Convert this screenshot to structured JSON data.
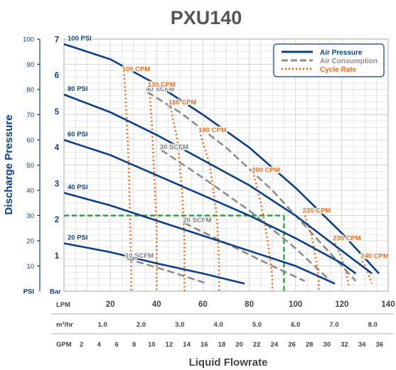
{
  "chart_data": {
    "type": "line",
    "title": "PXU140",
    "xlabel": "Liquid Flowrate",
    "ylabel": "Discharge Pressure",
    "x_unit_label": "LPM",
    "psi_unit_label": "PSI",
    "bar_unit_label": "Bar",
    "xlim": [
      0,
      140
    ],
    "ylim_psi": [
      0,
      100
    ],
    "ylim_bar": [
      0,
      7
    ],
    "x_ticks": [
      20,
      40,
      60,
      80,
      100,
      120,
      140
    ],
    "psi_ticks": [
      10,
      20,
      30,
      40,
      50,
      60,
      70,
      80,
      90,
      100
    ],
    "bar_ticks": [
      1,
      2,
      3,
      4,
      5,
      6,
      7
    ],
    "m3hr_axis": {
      "label": "m³/hr",
      "values": [
        1.0,
        2.0,
        3.0,
        4.0,
        5.0,
        6.0,
        7.0,
        8.0
      ]
    },
    "gpm_axis": {
      "label": "GPM",
      "values": [
        2,
        4,
        6,
        8,
        10,
        12,
        14,
        16,
        18,
        20,
        22,
        24,
        26,
        28,
        30,
        32,
        34,
        36
      ]
    },
    "grid": true,
    "legend_position": "top-right",
    "legend": [
      {
        "label": "Air Pressure",
        "style": "solid",
        "color": "#0b3f86"
      },
      {
        "label": "Air Consumption",
        "style": "dashed",
        "color": "#8c8c8c"
      },
      {
        "label": "Cycle Rate",
        "style": "dotted",
        "color": "#ec6b1e"
      }
    ],
    "colors": {
      "air_pressure": "#0b3f86",
      "air_consumption": "#8c8c8c",
      "cycle_rate": "#ec6b1e",
      "reference": "#2ea043",
      "title": "#555555",
      "grid": "#d4d4d4"
    },
    "air_pressure_series": [
      {
        "name": "100 PSI",
        "points": [
          [
            0,
            98
          ],
          [
            20,
            92
          ],
          [
            40,
            82
          ],
          [
            60,
            70
          ],
          [
            80,
            57
          ],
          [
            100,
            41
          ],
          [
            120,
            23
          ],
          [
            136,
            7
          ]
        ]
      },
      {
        "name": "80 PSI",
        "points": [
          [
            0,
            78
          ],
          [
            20,
            71
          ],
          [
            40,
            62
          ],
          [
            60,
            52
          ],
          [
            80,
            42
          ],
          [
            100,
            30
          ],
          [
            120,
            16
          ],
          [
            133,
            7
          ]
        ]
      },
      {
        "name": "60 PSI",
        "points": [
          [
            0,
            60
          ],
          [
            20,
            54
          ],
          [
            40,
            46
          ],
          [
            60,
            38
          ],
          [
            80,
            30
          ],
          [
            100,
            21
          ],
          [
            120,
            11
          ],
          [
            126,
            7
          ]
        ]
      },
      {
        "name": "40 PSI",
        "points": [
          [
            0,
            39
          ],
          [
            20,
            34
          ],
          [
            40,
            28
          ],
          [
            60,
            22
          ],
          [
            80,
            16
          ],
          [
            100,
            10
          ],
          [
            117,
            3
          ]
        ]
      },
      {
        "name": "20 PSI",
        "points": [
          [
            0,
            19
          ],
          [
            20,
            15.5
          ],
          [
            40,
            11
          ],
          [
            60,
            7
          ],
          [
            78,
            3
          ]
        ]
      }
    ],
    "air_consumption_series": [
      {
        "name": "40 SCFM",
        "points": [
          [
            36,
            79
          ],
          [
            50,
            71
          ],
          [
            70,
            57
          ],
          [
            90,
            40
          ],
          [
            110,
            20
          ],
          [
            126,
            4
          ]
        ]
      },
      {
        "name": "30 SCFM",
        "points": [
          [
            42,
            56
          ],
          [
            60,
            45
          ],
          [
            80,
            32
          ],
          [
            100,
            17
          ],
          [
            114,
            5
          ]
        ]
      },
      {
        "name": "20 SCFM",
        "points": [
          [
            52,
            27
          ],
          [
            70,
            19
          ],
          [
            90,
            10
          ],
          [
            104,
            4
          ]
        ]
      },
      {
        "name": "10 SCFM",
        "points": [
          [
            27,
            13
          ],
          [
            45,
            8
          ],
          [
            62,
            3
          ]
        ]
      }
    ],
    "cycle_rate_series": [
      {
        "name": "100 CPM",
        "points": [
          [
            26,
            86
          ],
          [
            27,
            70
          ],
          [
            28,
            50
          ],
          [
            28.5,
            30
          ],
          [
            29,
            10
          ],
          [
            29,
            0
          ]
        ]
      },
      {
        "name": "130 CPM",
        "points": [
          [
            37,
            80
          ],
          [
            38,
            65
          ],
          [
            39,
            45
          ],
          [
            40,
            25
          ],
          [
            40,
            0
          ]
        ]
      },
      {
        "name": "160 CPM",
        "points": [
          [
            46,
            73
          ],
          [
            49,
            60
          ],
          [
            51,
            40
          ],
          [
            52,
            20
          ],
          [
            52,
            0
          ]
        ]
      },
      {
        "name": "180 CPM",
        "points": [
          [
            59,
            62
          ],
          [
            63,
            50
          ],
          [
            66,
            30
          ],
          [
            67,
            10
          ],
          [
            67,
            0
          ]
        ]
      },
      {
        "name": "200 CPM",
        "points": [
          [
            82,
            46
          ],
          [
            85,
            35
          ],
          [
            88,
            20
          ],
          [
            90,
            5
          ],
          [
            90,
            0
          ]
        ]
      },
      {
        "name": "220 CPM",
        "points": [
          [
            104,
            30
          ],
          [
            107,
            22
          ],
          [
            109,
            12
          ],
          [
            110,
            4
          ],
          [
            110,
            0
          ]
        ]
      },
      {
        "name": "230 CPM",
        "points": [
          [
            117,
            19
          ],
          [
            120,
            13
          ],
          [
            122,
            7
          ],
          [
            123,
            2
          ]
        ]
      },
      {
        "name": "240 CPM",
        "points": [
          [
            129,
            12
          ],
          [
            131,
            8
          ],
          [
            133,
            3
          ]
        ]
      }
    ],
    "reference_lines": {
      "x": 95,
      "y_psi": 30
    }
  }
}
